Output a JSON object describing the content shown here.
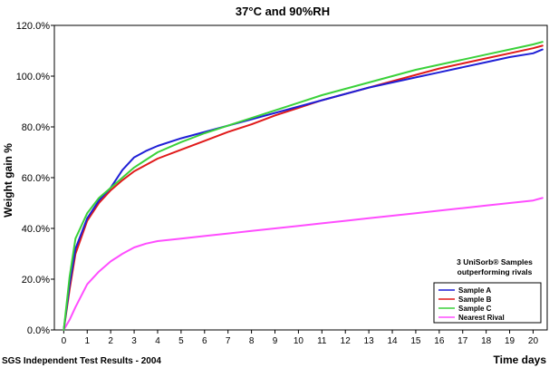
{
  "chart_data": {
    "type": "line",
    "title": "37°C and 90%RH",
    "xlabel": "Time days",
    "ylabel": "Weight gain %",
    "xlim": [
      -0.4,
      20.6
    ],
    "ylim": [
      0,
      120
    ],
    "x_ticks": [
      0,
      1,
      2,
      3,
      4,
      5,
      6,
      7,
      8,
      9,
      10,
      11,
      12,
      13,
      14,
      15,
      16,
      17,
      18,
      19,
      20
    ],
    "y_ticks": [
      0,
      20,
      40,
      60,
      80,
      100,
      120
    ],
    "y_tick_labels": [
      "0.0%",
      "20.0%",
      "40.0%",
      "60.0%",
      "80.0%",
      "100.0%",
      "120.0%"
    ],
    "grid": false,
    "legend": "bottom-right",
    "annotation": [
      "3 UniSorb® Samples",
      "outperforming rivals"
    ],
    "footer": "SGS Independent Test Results - 2004",
    "x": [
      0,
      0.25,
      0.5,
      1,
      1.5,
      2,
      2.5,
      3,
      3.5,
      4,
      5,
      6,
      7,
      8,
      9,
      10,
      11,
      12,
      13,
      14,
      15,
      16,
      17,
      18,
      19,
      20,
      20.4
    ],
    "series": [
      {
        "name": "Sample A",
        "color": "#1f1fd6",
        "values": [
          0,
          18,
          32,
          44,
          51,
          56,
          63,
          68,
          70.5,
          72.5,
          75.5,
          78,
          80.5,
          83,
          85.5,
          88,
          90.5,
          93,
          95.5,
          97.5,
          99.5,
          101.5,
          103.5,
          105.5,
          107.5,
          109,
          110.5
        ]
      },
      {
        "name": "Sample B",
        "color": "#e01a1a",
        "values": [
          0,
          16,
          30,
          43,
          50,
          55,
          59,
          62.5,
          65,
          67.5,
          71,
          74.5,
          78,
          81,
          84.5,
          87.5,
          90.5,
          93,
          95.5,
          98,
          100.5,
          103,
          105,
          107,
          109,
          111,
          112
        ]
      },
      {
        "name": "Sample C",
        "color": "#3ad13a",
        "values": [
          0,
          21,
          36,
          46,
          52,
          56,
          60,
          64,
          67,
          70,
          74,
          77.5,
          80.5,
          83.5,
          86.5,
          89.5,
          92.5,
          95,
          97.5,
          100,
          102.5,
          104.5,
          106.5,
          108.5,
          110.5,
          112.5,
          113.5
        ]
      },
      {
        "name": "Nearest Rival",
        "color": "#ff4dff",
        "values": [
          0,
          4,
          9,
          18,
          23,
          27,
          30,
          32.5,
          34,
          35,
          36,
          37,
          38,
          39,
          40,
          41,
          42,
          43,
          44,
          45,
          46,
          47,
          48,
          49,
          50,
          51,
          52
        ]
      }
    ]
  }
}
